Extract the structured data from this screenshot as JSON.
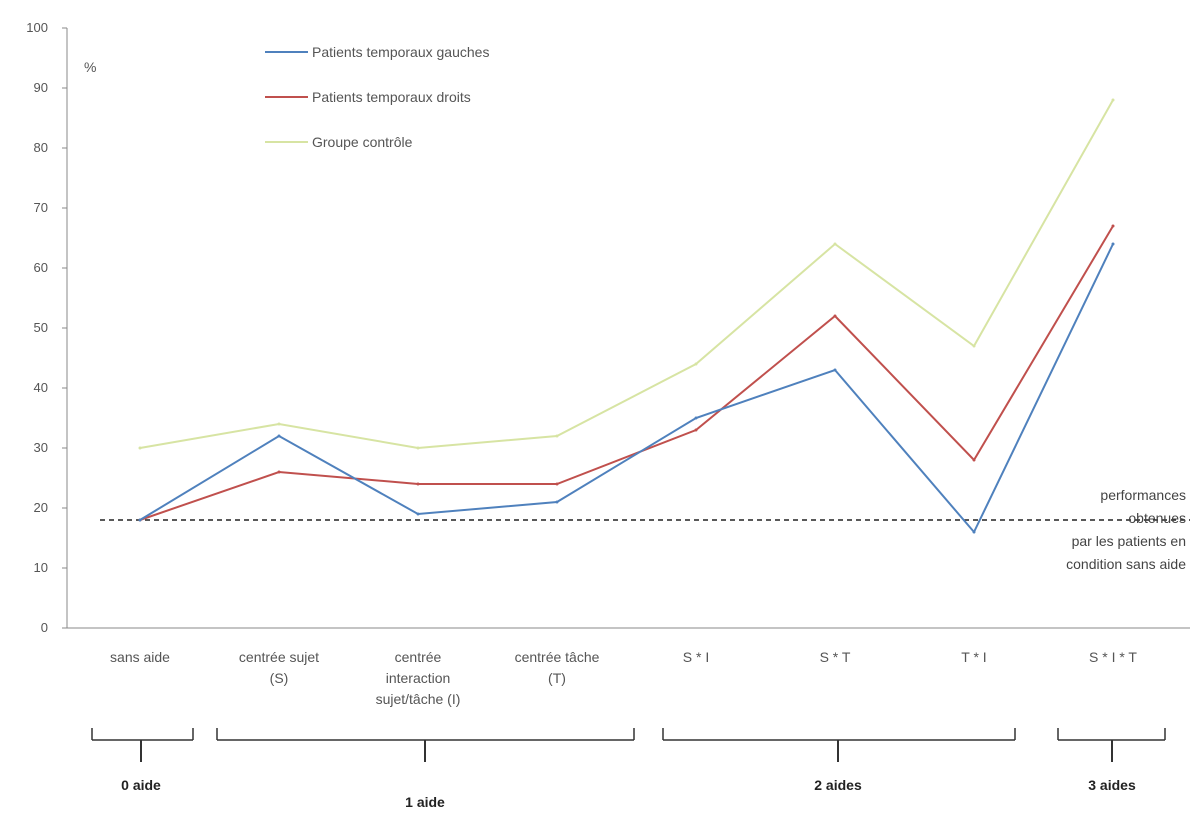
{
  "chart_data": {
    "type": "line",
    "unit_label": "%",
    "ylim": [
      0,
      100
    ],
    "ytick_values": [
      0,
      10,
      20,
      30,
      40,
      50,
      60,
      70,
      80,
      90,
      100
    ],
    "ytick_labels": [
      "0",
      "10",
      "20",
      "30",
      "40",
      "50",
      "60",
      "70",
      "80",
      "90",
      "100"
    ],
    "categories": [
      [
        "sans aide"
      ],
      [
        "centrée sujet",
        "(S)"
      ],
      [
        "centrée",
        "interaction",
        "sujet/tâche (I)"
      ],
      [
        "centrée tâche",
        "(T)"
      ],
      [
        "S * I"
      ],
      [
        "S * T"
      ],
      [
        "T * I"
      ],
      [
        "S * I * T"
      ]
    ],
    "series": [
      {
        "name": "Patients temporaux gauches",
        "color": "#4f81bd",
        "values": [
          18,
          32,
          19,
          21,
          35,
          43,
          16,
          64
        ]
      },
      {
        "name": "Patients temporaux droits",
        "color": "#c0504d",
        "values": [
          18,
          26,
          24,
          24,
          33,
          52,
          28,
          67
        ]
      },
      {
        "name": "Groupe contrôle",
        "color": "#d7e4a3",
        "values": [
          30,
          34,
          30,
          32,
          44,
          64,
          47,
          88
        ]
      }
    ],
    "reference_line": {
      "value": 18,
      "label": [
        "performances",
        "obtenues",
        "par les patients en",
        "condition sans aide"
      ]
    },
    "groups": [
      {
        "label": "0 aide",
        "from": 0,
        "to": 0
      },
      {
        "label": "1 aide",
        "from": 1,
        "to": 3
      },
      {
        "label": "2 aides",
        "from": 4,
        "to": 6
      },
      {
        "label": "3 aides",
        "from": 7,
        "to": 7
      }
    ],
    "grid": false,
    "legend_position": "top-left"
  }
}
